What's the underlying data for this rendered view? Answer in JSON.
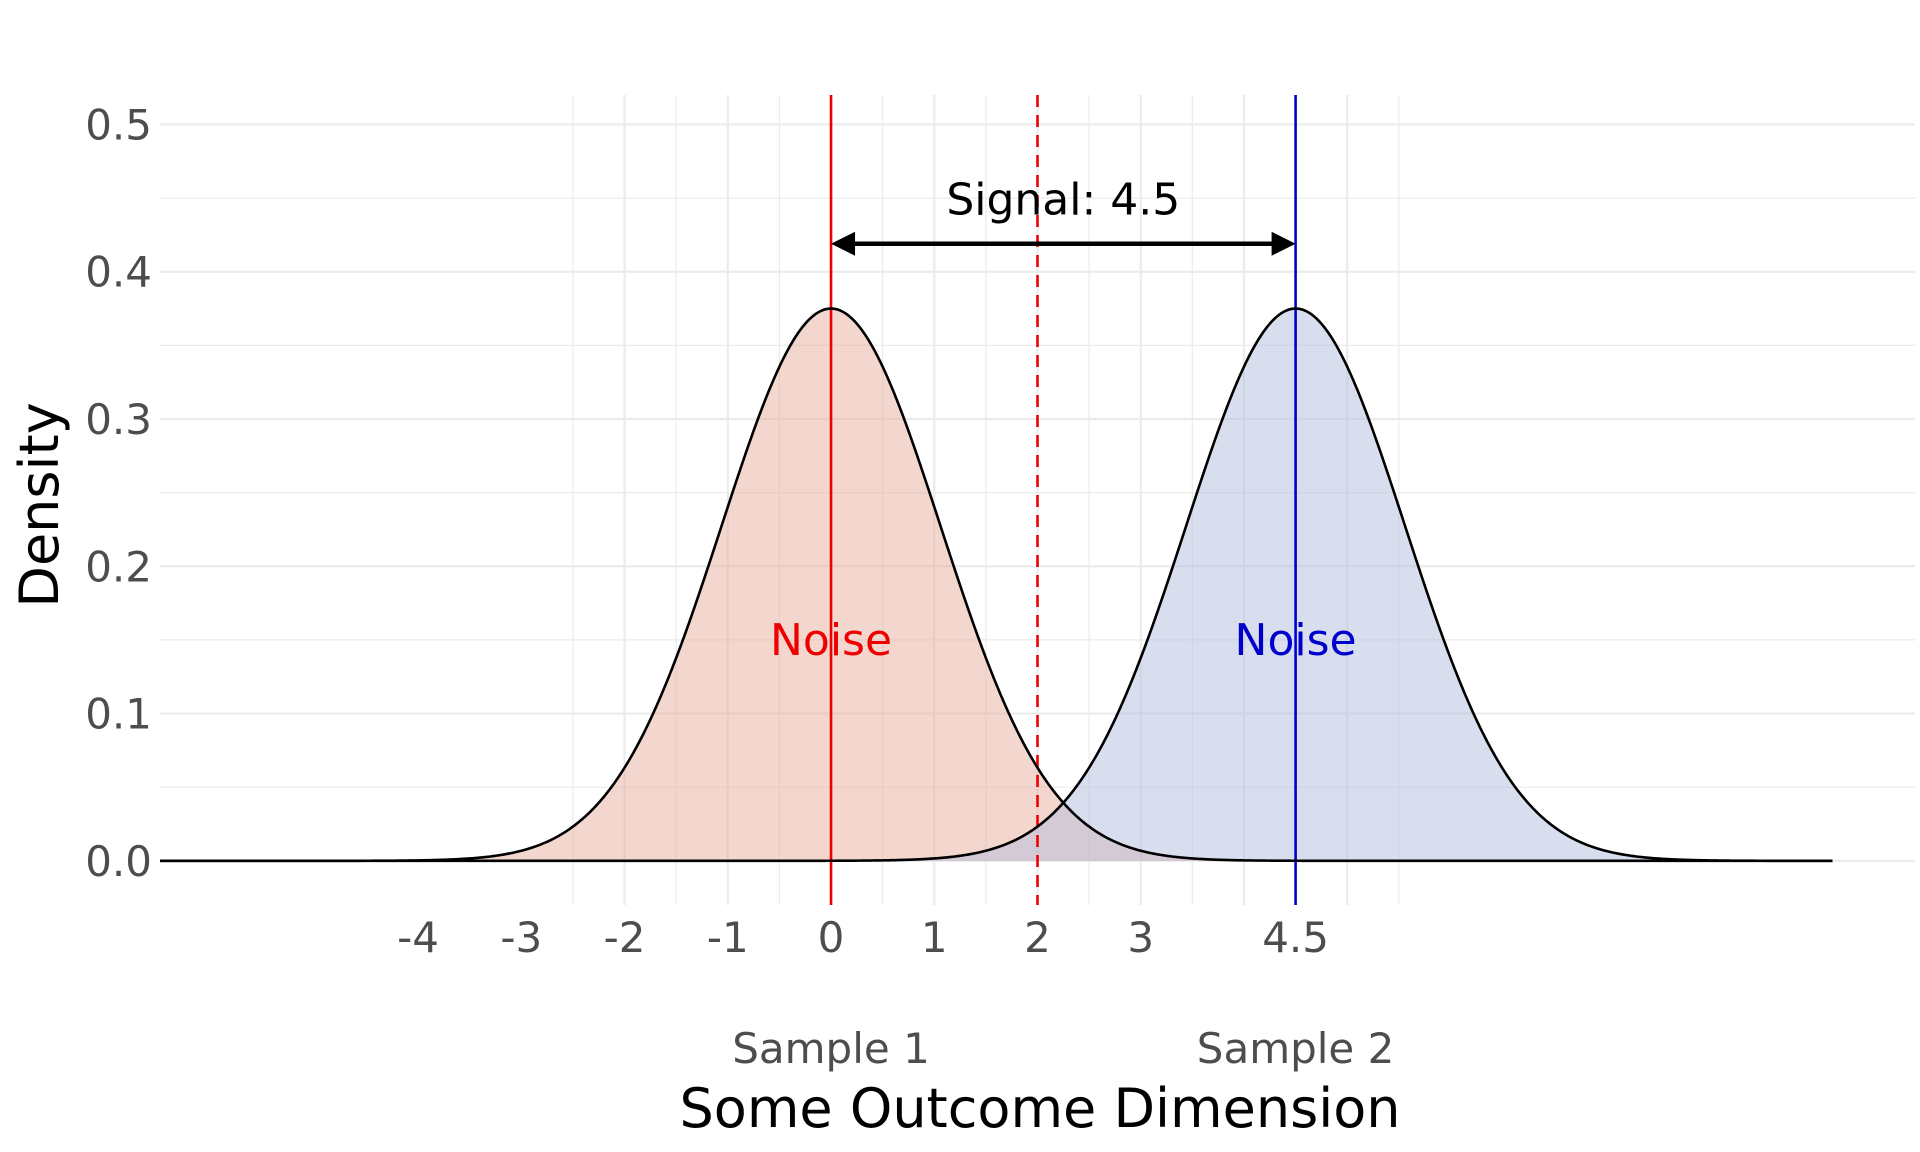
{
  "chart_data": {
    "type": "area",
    "xlabel": "Some Outcome Dimension",
    "ylabel": "Density",
    "xlim": [
      -6.5,
      10.5
    ],
    "ylim": [
      -0.03,
      0.52
    ],
    "x_ticks": [
      -4,
      -3,
      -2,
      -1,
      0,
      1,
      2,
      3,
      4.5
    ],
    "x_tick_labels": [
      "-4",
      "-3",
      "-2",
      "-1",
      "0",
      "1",
      "2",
      "3",
      "4.5"
    ],
    "y_ticks": [
      0.0,
      0.1,
      0.2,
      0.3,
      0.4,
      0.5
    ],
    "y_tick_labels": [
      "0.0",
      "0.1",
      "0.2",
      "0.3",
      "0.4",
      "0.5"
    ],
    "grid": true,
    "curve_range": [
      -6.5,
      9.7
    ],
    "series": [
      {
        "mean": 0,
        "sd": 1.06,
        "peak": 0.375,
        "fill": "#e8b0a0",
        "line": "#000000"
      },
      {
        "mean": 4.5,
        "sd": 1.06,
        "peak": 0.375,
        "fill": "#b3bedd",
        "line": "#000000"
      }
    ],
    "vlines": [
      {
        "x": 0,
        "color": "#ee0000",
        "style": "solid"
      },
      {
        "x": 2,
        "color": "#ee0000",
        "style": "dashed"
      },
      {
        "x": 4.5,
        "color": "#0000cc",
        "style": "solid"
      }
    ],
    "annotations": {
      "signal": {
        "text": "Signal: 4.5",
        "x_from": 0,
        "x_to": 4.5,
        "arrow_y": 0.419,
        "label_y": 0.449
      },
      "noise_labels": [
        {
          "text": "Noise",
          "x": 0,
          "y": 0.15,
          "color": "#ee0000"
        },
        {
          "text": "Noise",
          "x": 4.5,
          "y": 0.15,
          "color": "#0000cc"
        }
      ],
      "sample_labels": [
        {
          "text": "Sample 1",
          "x": 0
        },
        {
          "text": "Sample 2",
          "x": 4.5
        }
      ]
    }
  }
}
